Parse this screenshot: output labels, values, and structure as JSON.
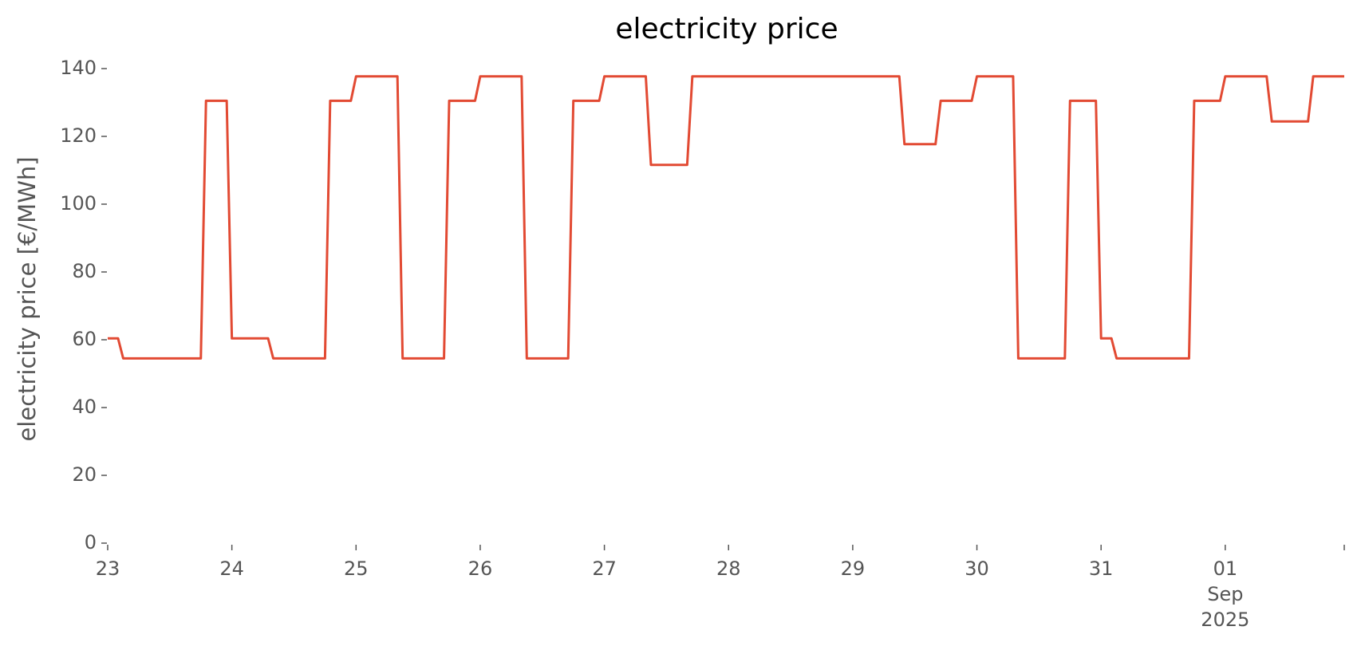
{
  "chart_data": {
    "type": "line",
    "title": "electricity price",
    "ylabel": "electricity price [€/MWh]",
    "x": [
      "2025-08-23 00:00",
      "2025-08-23 02:00",
      "2025-08-23 03:00",
      "2025-08-23 18:00",
      "2025-08-23 19:00",
      "2025-08-23 23:00",
      "2025-08-24 00:00",
      "2025-08-24 07:00",
      "2025-08-24 08:00",
      "2025-08-24 18:00",
      "2025-08-24 19:00",
      "2025-08-24 23:00",
      "2025-08-25 00:00",
      "2025-08-25 08:00",
      "2025-08-25 09:00",
      "2025-08-25 17:00",
      "2025-08-25 18:00",
      "2025-08-25 23:00",
      "2025-08-26 00:00",
      "2025-08-26 08:00",
      "2025-08-26 09:00",
      "2025-08-26 17:00",
      "2025-08-26 18:00",
      "2025-08-26 23:00",
      "2025-08-27 00:00",
      "2025-08-27 08:00",
      "2025-08-27 09:00",
      "2025-08-27 16:00",
      "2025-08-27 17:00",
      "2025-08-29 09:00",
      "2025-08-29 10:00",
      "2025-08-29 16:00",
      "2025-08-29 17:00",
      "2025-08-29 23:00",
      "2025-08-30 00:00",
      "2025-08-30 07:00",
      "2025-08-30 08:00",
      "2025-08-30 17:00",
      "2025-08-30 18:00",
      "2025-08-30 23:00",
      "2025-08-31 00:00",
      "2025-08-31 02:00",
      "2025-08-31 03:00",
      "2025-08-31 17:00",
      "2025-08-31 18:00",
      "2025-08-31 23:00",
      "2025-09-01 00:00",
      "2025-09-01 08:00",
      "2025-09-01 09:00",
      "2025-09-01 16:00",
      "2025-09-01 17:00",
      "2025-09-01 23:00"
    ],
    "values": [
      60.4,
      60.4,
      54.5,
      54.5,
      130.5,
      130.5,
      60.4,
      60.4,
      54.5,
      54.5,
      130.5,
      130.5,
      137.7,
      137.7,
      54.5,
      54.5,
      130.5,
      130.5,
      137.7,
      137.7,
      54.5,
      54.5,
      130.5,
      130.5,
      137.7,
      137.7,
      111.6,
      111.6,
      137.7,
      137.7,
      117.7,
      117.7,
      130.5,
      130.5,
      137.7,
      137.7,
      54.5,
      54.5,
      130.5,
      130.5,
      60.4,
      60.4,
      54.5,
      54.5,
      130.5,
      130.5,
      137.7,
      137.7,
      124.4,
      124.4,
      137.7,
      137.7
    ],
    "color": "#e24a33",
    "xlim": [
      "2025-08-23 00:00",
      "2025-09-01 23:00"
    ],
    "xticks": [
      {
        "value": "2025-08-23 00:00",
        "label": "23"
      },
      {
        "value": "2025-08-24 00:00",
        "label": "24"
      },
      {
        "value": "2025-08-25 00:00",
        "label": "25"
      },
      {
        "value": "2025-08-26 00:00",
        "label": "26"
      },
      {
        "value": "2025-08-27 00:00",
        "label": "27"
      },
      {
        "value": "2025-08-28 00:00",
        "label": "28"
      },
      {
        "value": "2025-08-29 00:00",
        "label": "29"
      },
      {
        "value": "2025-08-30 00:00",
        "label": "30"
      },
      {
        "value": "2025-08-31 00:00",
        "label": "31"
      },
      {
        "value": "2025-09-01 00:00",
        "label": "01\nSep\n2025"
      }
    ],
    "ylim": [
      0,
      140
    ],
    "yticks": [
      0,
      20,
      40,
      60,
      80,
      100,
      120,
      140
    ],
    "grid": false
  }
}
